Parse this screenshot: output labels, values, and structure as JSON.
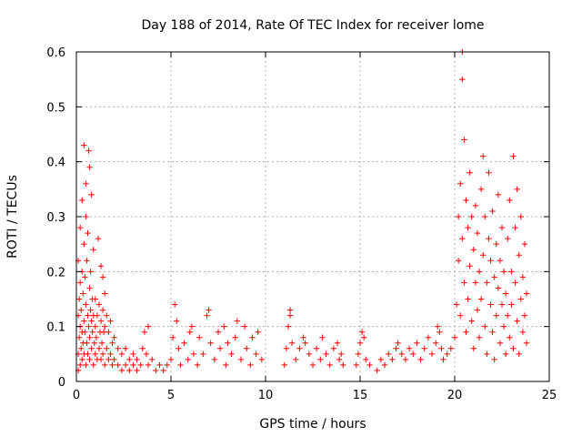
{
  "chart_data": {
    "type": "scatter",
    "title": "Day 188 of 2014, Rate Of TEC Index for receiver lome",
    "xlabel": "GPS time / hours",
    "ylabel": "ROTI / TECUs",
    "xlim": [
      0,
      25
    ],
    "ylim": [
      0,
      0.6
    ],
    "x_ticks": [
      0,
      5,
      10,
      15,
      20,
      25
    ],
    "y_ticks": [
      0,
      0.1,
      0.2,
      0.3,
      0.4,
      0.5,
      0.6
    ],
    "x_tick_labels": [
      "0",
      "5",
      "10",
      "15",
      "20",
      "25"
    ],
    "y_tick_labels": [
      "0",
      "0.1",
      "0.2",
      "0.3",
      "0.4",
      "0.5",
      "0.6"
    ],
    "grid": true,
    "marker": "+",
    "color": "#ff0000",
    "points": [
      [
        0.1,
        0.02
      ],
      [
        0.1,
        0.05
      ],
      [
        0.1,
        0.12
      ],
      [
        0.1,
        0.22
      ],
      [
        0.15,
        0.08
      ],
      [
        0.15,
        0.15
      ],
      [
        0.2,
        0.03
      ],
      [
        0.2,
        0.1
      ],
      [
        0.2,
        0.18
      ],
      [
        0.2,
        0.28
      ],
      [
        0.25,
        0.06
      ],
      [
        0.25,
        0.13
      ],
      [
        0.3,
        0.04
      ],
      [
        0.3,
        0.09
      ],
      [
        0.3,
        0.2
      ],
      [
        0.3,
        0.33
      ],
      [
        0.35,
        0.07
      ],
      [
        0.35,
        0.16
      ],
      [
        0.4,
        0.43
      ],
      [
        0.4,
        0.05
      ],
      [
        0.4,
        0.11
      ],
      [
        0.4,
        0.25
      ],
      [
        0.45,
        0.09
      ],
      [
        0.45,
        0.19
      ],
      [
        0.5,
        0.03
      ],
      [
        0.5,
        0.14
      ],
      [
        0.5,
        0.3
      ],
      [
        0.5,
        0.36
      ],
      [
        0.55,
        0.07
      ],
      [
        0.55,
        0.22
      ],
      [
        0.6,
        0.05
      ],
      [
        0.6,
        0.12
      ],
      [
        0.6,
        0.27
      ],
      [
        0.65,
        0.42
      ],
      [
        0.65,
        0.1
      ],
      [
        0.7,
        0.04
      ],
      [
        0.7,
        0.08
      ],
      [
        0.7,
        0.17
      ],
      [
        0.7,
        0.39
      ],
      [
        0.75,
        0.13
      ],
      [
        0.75,
        0.2
      ],
      [
        0.8,
        0.06
      ],
      [
        0.8,
        0.11
      ],
      [
        0.8,
        0.34
      ],
      [
        0.85,
        0.09
      ],
      [
        0.85,
        0.15
      ],
      [
        0.9,
        0.03
      ],
      [
        0.9,
        0.12
      ],
      [
        0.9,
        0.24
      ],
      [
        0.95,
        0.07
      ],
      [
        1.0,
        0.05
      ],
      [
        1.0,
        0.1
      ],
      [
        1.0,
        0.15
      ],
      [
        1.05,
        0.08
      ],
      [
        1.1,
        0.04
      ],
      [
        1.1,
        0.12
      ],
      [
        1.15,
        0.26
      ],
      [
        1.2,
        0.06
      ],
      [
        1.2,
        0.14
      ],
      [
        1.25,
        0.09
      ],
      [
        1.3,
        0.04
      ],
      [
        1.3,
        0.11
      ],
      [
        1.3,
        0.21
      ],
      [
        1.35,
        0.07
      ],
      [
        1.4,
        0.05
      ],
      [
        1.4,
        0.13
      ],
      [
        1.4,
        0.19
      ],
      [
        1.45,
        0.09
      ],
      [
        1.5,
        0.03
      ],
      [
        1.5,
        0.1
      ],
      [
        1.5,
        0.16
      ],
      [
        1.6,
        0.06
      ],
      [
        1.6,
        0.12
      ],
      [
        1.7,
        0.04
      ],
      [
        1.7,
        0.09
      ],
      [
        1.8,
        0.05
      ],
      [
        1.8,
        0.11
      ],
      [
        1.9,
        0.03
      ],
      [
        1.9,
        0.07
      ],
      [
        2.0,
        0.04
      ],
      [
        2.0,
        0.08
      ],
      [
        2.2,
        0.03
      ],
      [
        2.2,
        0.06
      ],
      [
        2.4,
        0.02
      ],
      [
        2.4,
        0.05
      ],
      [
        2.6,
        0.03
      ],
      [
        2.6,
        0.06
      ],
      [
        2.8,
        0.02
      ],
      [
        2.8,
        0.04
      ],
      [
        3.0,
        0.03
      ],
      [
        3.0,
        0.05
      ],
      [
        3.2,
        0.02
      ],
      [
        3.2,
        0.04
      ],
      [
        3.4,
        0.03
      ],
      [
        3.5,
        0.06
      ],
      [
        3.6,
        0.09
      ],
      [
        3.7,
        0.05
      ],
      [
        3.8,
        0.1
      ],
      [
        3.8,
        0.03
      ],
      [
        4.0,
        0.04
      ],
      [
        4.2,
        0.02
      ],
      [
        4.4,
        0.03
      ],
      [
        4.6,
        0.02
      ],
      [
        4.8,
        0.03
      ],
      [
        5.0,
        0.04
      ],
      [
        5.1,
        0.08
      ],
      [
        5.2,
        0.14
      ],
      [
        5.3,
        0.11
      ],
      [
        5.4,
        0.06
      ],
      [
        5.5,
        0.03
      ],
      [
        5.7,
        0.07
      ],
      [
        5.9,
        0.04
      ],
      [
        6.0,
        0.09
      ],
      [
        6.1,
        0.1
      ],
      [
        6.2,
        0.05
      ],
      [
        6.4,
        0.03
      ],
      [
        6.5,
        0.08
      ],
      [
        6.7,
        0.05
      ],
      [
        6.9,
        0.12
      ],
      [
        7.0,
        0.13
      ],
      [
        7.1,
        0.07
      ],
      [
        7.3,
        0.04
      ],
      [
        7.5,
        0.09
      ],
      [
        7.6,
        0.06
      ],
      [
        7.8,
        0.1
      ],
      [
        7.9,
        0.03
      ],
      [
        8.0,
        0.07
      ],
      [
        8.2,
        0.05
      ],
      [
        8.4,
        0.08
      ],
      [
        8.5,
        0.11
      ],
      [
        8.7,
        0.04
      ],
      [
        8.9,
        0.1
      ],
      [
        9.0,
        0.06
      ],
      [
        9.2,
        0.03
      ],
      [
        9.3,
        0.08
      ],
      [
        9.5,
        0.05
      ],
      [
        9.6,
        0.09
      ],
      [
        9.8,
        0.04
      ],
      [
        11.0,
        0.03
      ],
      [
        11.1,
        0.06
      ],
      [
        11.2,
        0.1
      ],
      [
        11.3,
        0.13
      ],
      [
        11.3,
        0.12
      ],
      [
        11.4,
        0.07
      ],
      [
        11.6,
        0.04
      ],
      [
        11.8,
        0.06
      ],
      [
        12.0,
        0.08
      ],
      [
        12.1,
        0.07
      ],
      [
        12.3,
        0.05
      ],
      [
        12.5,
        0.03
      ],
      [
        12.7,
        0.06
      ],
      [
        12.9,
        0.04
      ],
      [
        13.0,
        0.08
      ],
      [
        13.2,
        0.05
      ],
      [
        13.4,
        0.03
      ],
      [
        13.6,
        0.06
      ],
      [
        13.8,
        0.07
      ],
      [
        13.9,
        0.04
      ],
      [
        14.0,
        0.05
      ],
      [
        14.1,
        0.03
      ],
      [
        14.8,
        0.03
      ],
      [
        14.9,
        0.05
      ],
      [
        15.0,
        0.07
      ],
      [
        15.1,
        0.09
      ],
      [
        15.2,
        0.08
      ],
      [
        15.3,
        0.04
      ],
      [
        15.5,
        0.03
      ],
      [
        15.9,
        0.02
      ],
      [
        16.1,
        0.04
      ],
      [
        16.3,
        0.03
      ],
      [
        16.5,
        0.05
      ],
      [
        16.7,
        0.04
      ],
      [
        16.9,
        0.06
      ],
      [
        17.0,
        0.07
      ],
      [
        17.2,
        0.05
      ],
      [
        17.4,
        0.04
      ],
      [
        17.6,
        0.06
      ],
      [
        17.8,
        0.05
      ],
      [
        18.0,
        0.07
      ],
      [
        18.2,
        0.04
      ],
      [
        18.4,
        0.06
      ],
      [
        18.6,
        0.08
      ],
      [
        18.8,
        0.05
      ],
      [
        19.0,
        0.07
      ],
      [
        19.1,
        0.1
      ],
      [
        19.2,
        0.09
      ],
      [
        19.3,
        0.06
      ],
      [
        19.4,
        0.04
      ],
      [
        19.6,
        0.05
      ],
      [
        19.8,
        0.06
      ],
      [
        20.0,
        0.08
      ],
      [
        20.1,
        0.14
      ],
      [
        20.2,
        0.22
      ],
      [
        20.2,
        0.3
      ],
      [
        20.3,
        0.36
      ],
      [
        20.3,
        0.12
      ],
      [
        20.4,
        0.55
      ],
      [
        20.4,
        0.6
      ],
      [
        20.4,
        0.26
      ],
      [
        20.5,
        0.44
      ],
      [
        20.5,
        0.18
      ],
      [
        20.6,
        0.33
      ],
      [
        20.6,
        0.09
      ],
      [
        20.7,
        0.28
      ],
      [
        20.7,
        0.15
      ],
      [
        20.8,
        0.38
      ],
      [
        20.8,
        0.21
      ],
      [
        20.9,
        0.11
      ],
      [
        20.9,
        0.3
      ],
      [
        21.0,
        0.24
      ],
      [
        21.0,
        0.06
      ],
      [
        21.1,
        0.18
      ],
      [
        21.1,
        0.32
      ],
      [
        21.2,
        0.13
      ],
      [
        21.2,
        0.27
      ],
      [
        21.3,
        0.2
      ],
      [
        21.3,
        0.08
      ],
      [
        21.4,
        0.35
      ],
      [
        21.4,
        0.15
      ],
      [
        21.5,
        0.41
      ],
      [
        21.5,
        0.23
      ],
      [
        21.6,
        0.1
      ],
      [
        21.6,
        0.3
      ],
      [
        21.7,
        0.18
      ],
      [
        21.7,
        0.05
      ],
      [
        21.8,
        0.26
      ],
      [
        21.8,
        0.38
      ],
      [
        21.9,
        0.14
      ],
      [
        21.9,
        0.22
      ],
      [
        22.0,
        0.09
      ],
      [
        22.0,
        0.31
      ],
      [
        22.1,
        0.19
      ],
      [
        22.1,
        0.04
      ],
      [
        22.2,
        0.25
      ],
      [
        22.2,
        0.12
      ],
      [
        22.3,
        0.34
      ],
      [
        22.3,
        0.17
      ],
      [
        22.4,
        0.07
      ],
      [
        22.4,
        0.22
      ],
      [
        22.5,
        0.14
      ],
      [
        22.5,
        0.28
      ],
      [
        22.6,
        0.1
      ],
      [
        22.6,
        0.2
      ],
      [
        22.7,
        0.05
      ],
      [
        22.7,
        0.16
      ],
      [
        22.8,
        0.26
      ],
      [
        22.8,
        0.12
      ],
      [
        22.9,
        0.33
      ],
      [
        22.9,
        0.08
      ],
      [
        23.0,
        0.2
      ],
      [
        23.0,
        0.14
      ],
      [
        23.1,
        0.41
      ],
      [
        23.1,
        0.06
      ],
      [
        23.2,
        0.28
      ],
      [
        23.2,
        0.18
      ],
      [
        23.3,
        0.11
      ],
      [
        23.3,
        0.35
      ],
      [
        23.4,
        0.23
      ],
      [
        23.4,
        0.05
      ],
      [
        23.5,
        0.15
      ],
      [
        23.5,
        0.3
      ],
      [
        23.6,
        0.09
      ],
      [
        23.6,
        0.19
      ],
      [
        23.7,
        0.25
      ],
      [
        23.7,
        0.12
      ],
      [
        23.8,
        0.07
      ],
      [
        23.8,
        0.16
      ]
    ]
  }
}
